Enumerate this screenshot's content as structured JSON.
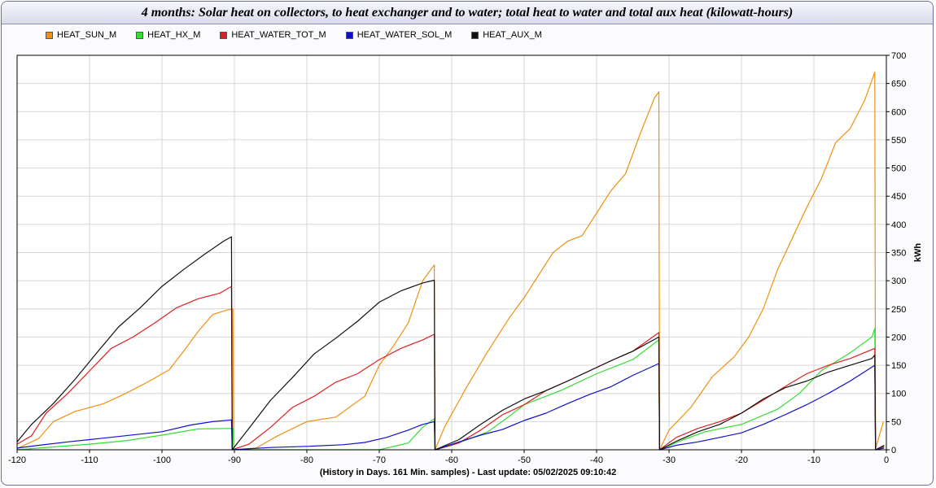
{
  "title": "4 months: Solar heat on collectors, to heat exchanger and to water; total heat to water and total aux heat (kilowatt-hours)",
  "footer": "(History in Days. 161 Min. samples) - Last update: 05/02/2025 09:10:42",
  "chart_data": {
    "type": "line",
    "title": "4 months: Solar heat on collectors, to heat exchanger and to water; total heat to water and total aux heat (kilowatt-hours)",
    "xlabel": "(History in Days. 161 Min. samples) - Last update: 05/02/2025 09:10:42",
    "ylabel": "kWh",
    "xlim": [
      -120,
      0
    ],
    "ylim": [
      0,
      700
    ],
    "x_ticks": [
      -120,
      -110,
      -100,
      -90,
      -80,
      -70,
      -60,
      -50,
      -40,
      -30,
      -20,
      -10,
      0
    ],
    "y_ticks": [
      0,
      50,
      100,
      150,
      200,
      250,
      300,
      350,
      400,
      450,
      500,
      550,
      600,
      650,
      700
    ],
    "grid": true,
    "legend_position": "top",
    "series": [
      {
        "name": "HEAT_SUN_M",
        "color": "#f0900f",
        "points": [
          [
            -120,
            2
          ],
          [
            -117,
            20
          ],
          [
            -115,
            50
          ],
          [
            -112,
            68
          ],
          [
            -108,
            82
          ],
          [
            -105,
            100
          ],
          [
            -102,
            120
          ],
          [
            -99,
            142
          ],
          [
            -97,
            175
          ],
          [
            -95,
            210
          ],
          [
            -93,
            240
          ],
          [
            -91,
            248
          ],
          [
            -90.2,
            250
          ],
          [
            -90.1,
            0
          ],
          [
            -87,
            3
          ],
          [
            -84,
            25
          ],
          [
            -80,
            50
          ],
          [
            -76,
            58
          ],
          [
            -72,
            95
          ],
          [
            -70,
            150
          ],
          [
            -68,
            185
          ],
          [
            -66,
            225
          ],
          [
            -64,
            300
          ],
          [
            -62.4,
            328
          ],
          [
            -62.3,
            0
          ],
          [
            -61,
            40
          ],
          [
            -58,
            110
          ],
          [
            -55,
            175
          ],
          [
            -52,
            235
          ],
          [
            -50,
            270
          ],
          [
            -48,
            310
          ],
          [
            -46,
            350
          ],
          [
            -44,
            370
          ],
          [
            -42,
            380
          ],
          [
            -40,
            420
          ],
          [
            -38,
            460
          ],
          [
            -36,
            490
          ],
          [
            -34,
            560
          ],
          [
            -32,
            625
          ],
          [
            -31.4,
            635
          ],
          [
            -31.3,
            0
          ],
          [
            -30,
            35
          ],
          [
            -27,
            75
          ],
          [
            -24,
            130
          ],
          [
            -21,
            165
          ],
          [
            -19,
            200
          ],
          [
            -17,
            250
          ],
          [
            -15,
            320
          ],
          [
            -13,
            375
          ],
          [
            -11,
            430
          ],
          [
            -9,
            480
          ],
          [
            -7,
            545
          ],
          [
            -5,
            570
          ],
          [
            -3,
            620
          ],
          [
            -1.6,
            670
          ],
          [
            -1.5,
            2
          ],
          [
            -0.4,
            50
          ]
        ]
      },
      {
        "name": "HEAT_HX_M",
        "color": "#33dd33",
        "points": [
          [
            -120,
            0
          ],
          [
            -115,
            5
          ],
          [
            -110,
            10
          ],
          [
            -105,
            16
          ],
          [
            -100,
            26
          ],
          [
            -95,
            37
          ],
          [
            -90.2,
            38
          ],
          [
            -90.1,
            0
          ],
          [
            -80,
            0
          ],
          [
            -70,
            0
          ],
          [
            -66,
            12
          ],
          [
            -64,
            40
          ],
          [
            -62.4,
            55
          ],
          [
            -62.3,
            0
          ],
          [
            -60,
            8
          ],
          [
            -57,
            22
          ],
          [
            -55,
            32
          ],
          [
            -52,
            60
          ],
          [
            -50,
            80
          ],
          [
            -45,
            105
          ],
          [
            -40,
            135
          ],
          [
            -35,
            160
          ],
          [
            -31.4,
            195
          ],
          [
            -31.3,
            0
          ],
          [
            -28,
            18
          ],
          [
            -25,
            32
          ],
          [
            -20,
            45
          ],
          [
            -15,
            72
          ],
          [
            -12,
            100
          ],
          [
            -9,
            140
          ],
          [
            -5,
            172
          ],
          [
            -2,
            200
          ],
          [
            -1.6,
            215
          ],
          [
            -1.5,
            0
          ],
          [
            -0.3,
            5
          ]
        ]
      },
      {
        "name": "HEAT_WATER_TOT_M",
        "color": "#e02020",
        "points": [
          [
            -120,
            10
          ],
          [
            -118,
            25
          ],
          [
            -116,
            65
          ],
          [
            -113,
            100
          ],
          [
            -110,
            140
          ],
          [
            -107,
            180
          ],
          [
            -104,
            200
          ],
          [
            -101,
            225
          ],
          [
            -98,
            252
          ],
          [
            -95,
            268
          ],
          [
            -92,
            278
          ],
          [
            -90.4,
            290
          ],
          [
            -90.3,
            0
          ],
          [
            -88,
            10
          ],
          [
            -85,
            40
          ],
          [
            -82,
            75
          ],
          [
            -79,
            95
          ],
          [
            -76,
            120
          ],
          [
            -73,
            135
          ],
          [
            -70,
            160
          ],
          [
            -67,
            180
          ],
          [
            -64,
            195
          ],
          [
            -62.4,
            205
          ],
          [
            -62.3,
            0
          ],
          [
            -59,
            12
          ],
          [
            -56,
            35
          ],
          [
            -53,
            62
          ],
          [
            -50,
            80
          ],
          [
            -47,
            105
          ],
          [
            -44,
            122
          ],
          [
            -41,
            140
          ],
          [
            -38,
            158
          ],
          [
            -35,
            175
          ],
          [
            -31.4,
            208
          ],
          [
            -31.3,
            0
          ],
          [
            -29,
            22
          ],
          [
            -26,
            38
          ],
          [
            -23,
            50
          ],
          [
            -20,
            65
          ],
          [
            -17,
            88
          ],
          [
            -14,
            112
          ],
          [
            -11,
            135
          ],
          [
            -8,
            150
          ],
          [
            -5,
            162
          ],
          [
            -1.6,
            180
          ],
          [
            -1.5,
            0
          ],
          [
            -0.3,
            6
          ]
        ]
      },
      {
        "name": "HEAT_WATER_SOL_M",
        "color": "#1010cc",
        "points": [
          [
            -120,
            3
          ],
          [
            -117,
            8
          ],
          [
            -113,
            14
          ],
          [
            -110,
            18
          ],
          [
            -105,
            25
          ],
          [
            -100,
            32
          ],
          [
            -96,
            44
          ],
          [
            -93,
            50
          ],
          [
            -90.4,
            53
          ],
          [
            -90.3,
            0
          ],
          [
            -85,
            4
          ],
          [
            -80,
            6
          ],
          [
            -75,
            9
          ],
          [
            -72,
            13
          ],
          [
            -69,
            22
          ],
          [
            -66,
            35
          ],
          [
            -64,
            45
          ],
          [
            -62.4,
            50
          ],
          [
            -62.3,
            0
          ],
          [
            -59,
            14
          ],
          [
            -56,
            26
          ],
          [
            -53,
            36
          ],
          [
            -50,
            52
          ],
          [
            -47,
            65
          ],
          [
            -44,
            82
          ],
          [
            -41,
            98
          ],
          [
            -38,
            112
          ],
          [
            -35,
            132
          ],
          [
            -31.4,
            153
          ],
          [
            -31.3,
            0
          ],
          [
            -29,
            8
          ],
          [
            -26,
            14
          ],
          [
            -23,
            22
          ],
          [
            -20,
            30
          ],
          [
            -17,
            45
          ],
          [
            -14,
            62
          ],
          [
            -11,
            80
          ],
          [
            -8,
            100
          ],
          [
            -5,
            122
          ],
          [
            -1.6,
            150
          ],
          [
            -1.5,
            0
          ],
          [
            -0.3,
            3
          ]
        ]
      },
      {
        "name": "HEAT_AUX_M",
        "color": "#111111",
        "points": [
          [
            -120,
            14
          ],
          [
            -118,
            45
          ],
          [
            -115,
            82
          ],
          [
            -112,
            125
          ],
          [
            -109,
            172
          ],
          [
            -106,
            218
          ],
          [
            -103,
            252
          ],
          [
            -100,
            290
          ],
          [
            -97,
            320
          ],
          [
            -94,
            348
          ],
          [
            -91.5,
            370
          ],
          [
            -90.4,
            378
          ],
          [
            -90.3,
            0
          ],
          [
            -88,
            38
          ],
          [
            -85,
            88
          ],
          [
            -82,
            128
          ],
          [
            -79,
            170
          ],
          [
            -76,
            198
          ],
          [
            -73,
            228
          ],
          [
            -70,
            262
          ],
          [
            -67,
            282
          ],
          [
            -64,
            296
          ],
          [
            -62.4,
            301
          ],
          [
            -62.3,
            0
          ],
          [
            -59,
            18
          ],
          [
            -56,
            45
          ],
          [
            -53,
            70
          ],
          [
            -50,
            90
          ],
          [
            -47,
            105
          ],
          [
            -44,
            122
          ],
          [
            -41,
            140
          ],
          [
            -38,
            158
          ],
          [
            -35,
            175
          ],
          [
            -31.4,
            200
          ],
          [
            -31.3,
            0
          ],
          [
            -29,
            15
          ],
          [
            -26,
            32
          ],
          [
            -23,
            45
          ],
          [
            -20,
            65
          ],
          [
            -17,
            90
          ],
          [
            -14,
            110
          ],
          [
            -11,
            122
          ],
          [
            -8,
            138
          ],
          [
            -5,
            150
          ],
          [
            -2,
            162
          ],
          [
            -1.6,
            168
          ],
          [
            -1.5,
            0
          ],
          [
            -0.3,
            8
          ]
        ]
      }
    ]
  }
}
